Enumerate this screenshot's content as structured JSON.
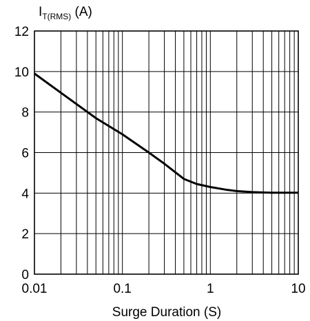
{
  "chart_data": {
    "type": "line",
    "title": "",
    "xlabel": "Surge Duration (S)",
    "ylabel": {
      "main": "I",
      "sub": "T(RMS)",
      "unit": " (A)"
    },
    "x_scale": "log",
    "xlim": [
      0.01,
      10
    ],
    "ylim": [
      0,
      12
    ],
    "x_ticks": [
      {
        "value": 0.01,
        "label": "0.01"
      },
      {
        "value": 0.1,
        "label": "0.1"
      },
      {
        "value": 1,
        "label": "1"
      },
      {
        "value": 10,
        "label": "10"
      }
    ],
    "y_ticks": [
      {
        "value": 0,
        "label": "0"
      },
      {
        "value": 2,
        "label": "2"
      },
      {
        "value": 4,
        "label": "4"
      },
      {
        "value": 6,
        "label": "6"
      },
      {
        "value": 8,
        "label": "8"
      },
      {
        "value": 10,
        "label": "10"
      },
      {
        "value": 12,
        "label": "12"
      }
    ],
    "grid": true,
    "legend": "none",
    "series": [
      {
        "color": "#000000",
        "points": [
          {
            "x": 0.01,
            "y": 9.9
          },
          {
            "x": 0.02,
            "y": 8.95
          },
          {
            "x": 0.05,
            "y": 7.7
          },
          {
            "x": 0.1,
            "y": 6.9
          },
          {
            "x": 0.2,
            "y": 6.0
          },
          {
            "x": 0.3,
            "y": 5.45
          },
          {
            "x": 0.5,
            "y": 4.7
          },
          {
            "x": 0.7,
            "y": 4.45
          },
          {
            "x": 1,
            "y": 4.3
          },
          {
            "x": 1.5,
            "y": 4.17
          },
          {
            "x": 2,
            "y": 4.1
          },
          {
            "x": 3,
            "y": 4.05
          },
          {
            "x": 5,
            "y": 4.02
          },
          {
            "x": 10,
            "y": 4.02
          }
        ]
      }
    ]
  }
}
